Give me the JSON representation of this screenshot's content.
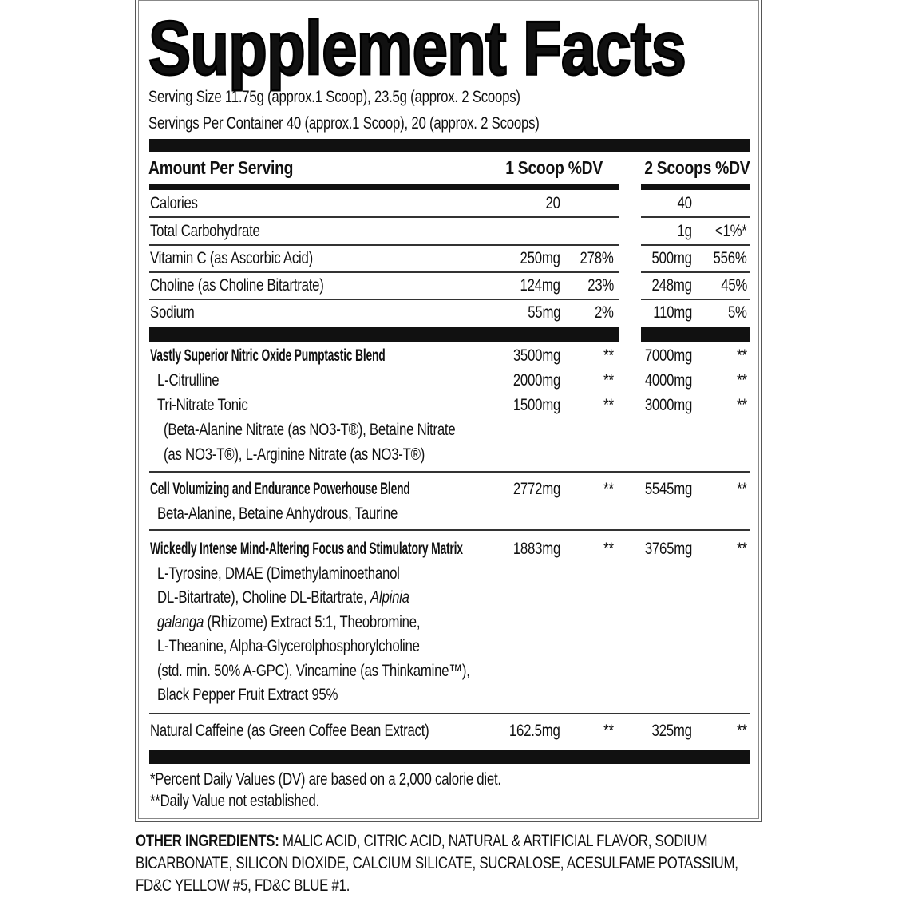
{
  "title": "Supplement Facts",
  "serving_size": "Serving Size 11.75g (approx.1 Scoop), 23.5g (approx. 2 Scoops)",
  "servings_per_container": "Servings Per Container 40 (approx.1 Scoop), 20 (approx. 2 Scoops)",
  "header": {
    "amount": "Amount Per Serving",
    "col1": "1 Scoop %DV",
    "col2": "2 Scoops %DV"
  },
  "nutrients": [
    {
      "name": "Calories",
      "amt1": "20",
      "dv1": "",
      "amt2": "40",
      "dv2": ""
    },
    {
      "name": "Total Carbohydrate",
      "amt1": "",
      "dv1": "",
      "amt2": "1g",
      "dv2": "<1%*"
    },
    {
      "name": "Vitamin C (as Ascorbic Acid)",
      "amt1": "250mg",
      "dv1": "278%",
      "amt2": "500mg",
      "dv2": "556%"
    },
    {
      "name": "Choline (as Choline Bitartrate)",
      "amt1": "124mg",
      "dv1": "23%",
      "amt2": "248mg",
      "dv2": "45%"
    },
    {
      "name": "Sodium",
      "amt1": "55mg",
      "dv1": "2%",
      "amt2": "110mg",
      "dv2": "5%"
    }
  ],
  "blends": [
    {
      "name": "Vastly Superior Nitric Oxide Pumptastic Blend",
      "bold": true,
      "amt1": "3500mg",
      "dv1": "**",
      "amt2": "7000mg",
      "dv2": "**",
      "children": [
        {
          "name": "L-Citrulline",
          "amt1": "2000mg",
          "dv1": "**",
          "amt2": "4000mg",
          "dv2": "**"
        },
        {
          "name": "Tri-Nitrate Tonic",
          "amt1": "1500mg",
          "dv1": "**",
          "amt2": "3000mg",
          "dv2": "**"
        }
      ],
      "detail": [
        [
          {
            "text": "(Beta-Alanine Nitrate (as NO3-T®), Betaine Nitrate"
          }
        ],
        [
          {
            "text": "(as NO3-T®), L-Arginine Nitrate (as NO3-T®)"
          }
        ]
      ]
    },
    {
      "name": "Cell Volumizing and Endurance Powerhouse Blend",
      "bold": true,
      "amt1": "2772mg",
      "dv1": "**",
      "amt2": "5545mg",
      "dv2": "**",
      "children": [],
      "detail": [
        [
          {
            "text": "Beta-Alanine, Betaine Anhydrous, Taurine"
          }
        ]
      ]
    },
    {
      "name": "Wickedly Intense Mind-Altering Focus and Stimulatory Matrix",
      "bold": true,
      "amt1": "1883mg",
      "dv1": "**",
      "amt2": "3765mg",
      "dv2": "**",
      "children": [],
      "detail": [
        [
          {
            "text": "L-Tyrosine, DMAE (Dimethylaminoethanol"
          }
        ],
        [
          {
            "text": "DL-Bitartrate), Choline DL-Bitartrate, "
          },
          {
            "text": "Alpinia",
            "italic": true
          }
        ],
        [
          {
            "text": "galanga",
            "italic": true
          },
          {
            "text": " (Rhizome) Extract 5:1, Theobromine,"
          }
        ],
        [
          {
            "text": "L-Theanine, Alpha-Glycerolphosphorylcholine"
          }
        ],
        [
          {
            "text": "(std. min. 50% A-GPC), Vincamine (as Thinkamine™),"
          }
        ],
        [
          {
            "text": "Black Pepper Fruit Extract 95%"
          }
        ]
      ]
    },
    {
      "name": "Natural Caffeine (as Green Coffee Bean Extract)",
      "bold": false,
      "amt1": "162.5mg",
      "dv1": "**",
      "amt2": "325mg",
      "dv2": "**",
      "children": [],
      "detail": []
    }
  ],
  "footnotes": [
    "*Percent Daily Values (DV) are based on a 2,000 calorie diet.",
    "**Daily Value not established."
  ],
  "other_ingredients": {
    "label": "OTHER INGREDIENTS:",
    "lines": [
      " MALIC ACID, CITRIC ACID, NATURAL & ARTIFICIAL FLAVOR, SODIUM",
      "BICARBONATE, SILICON DIOXIDE, CALCIUM SILICATE, SUCRALOSE, ACESULFAME POTASSIUM,",
      "FD&C YELLOW #5, FD&C BLUE #1."
    ]
  }
}
